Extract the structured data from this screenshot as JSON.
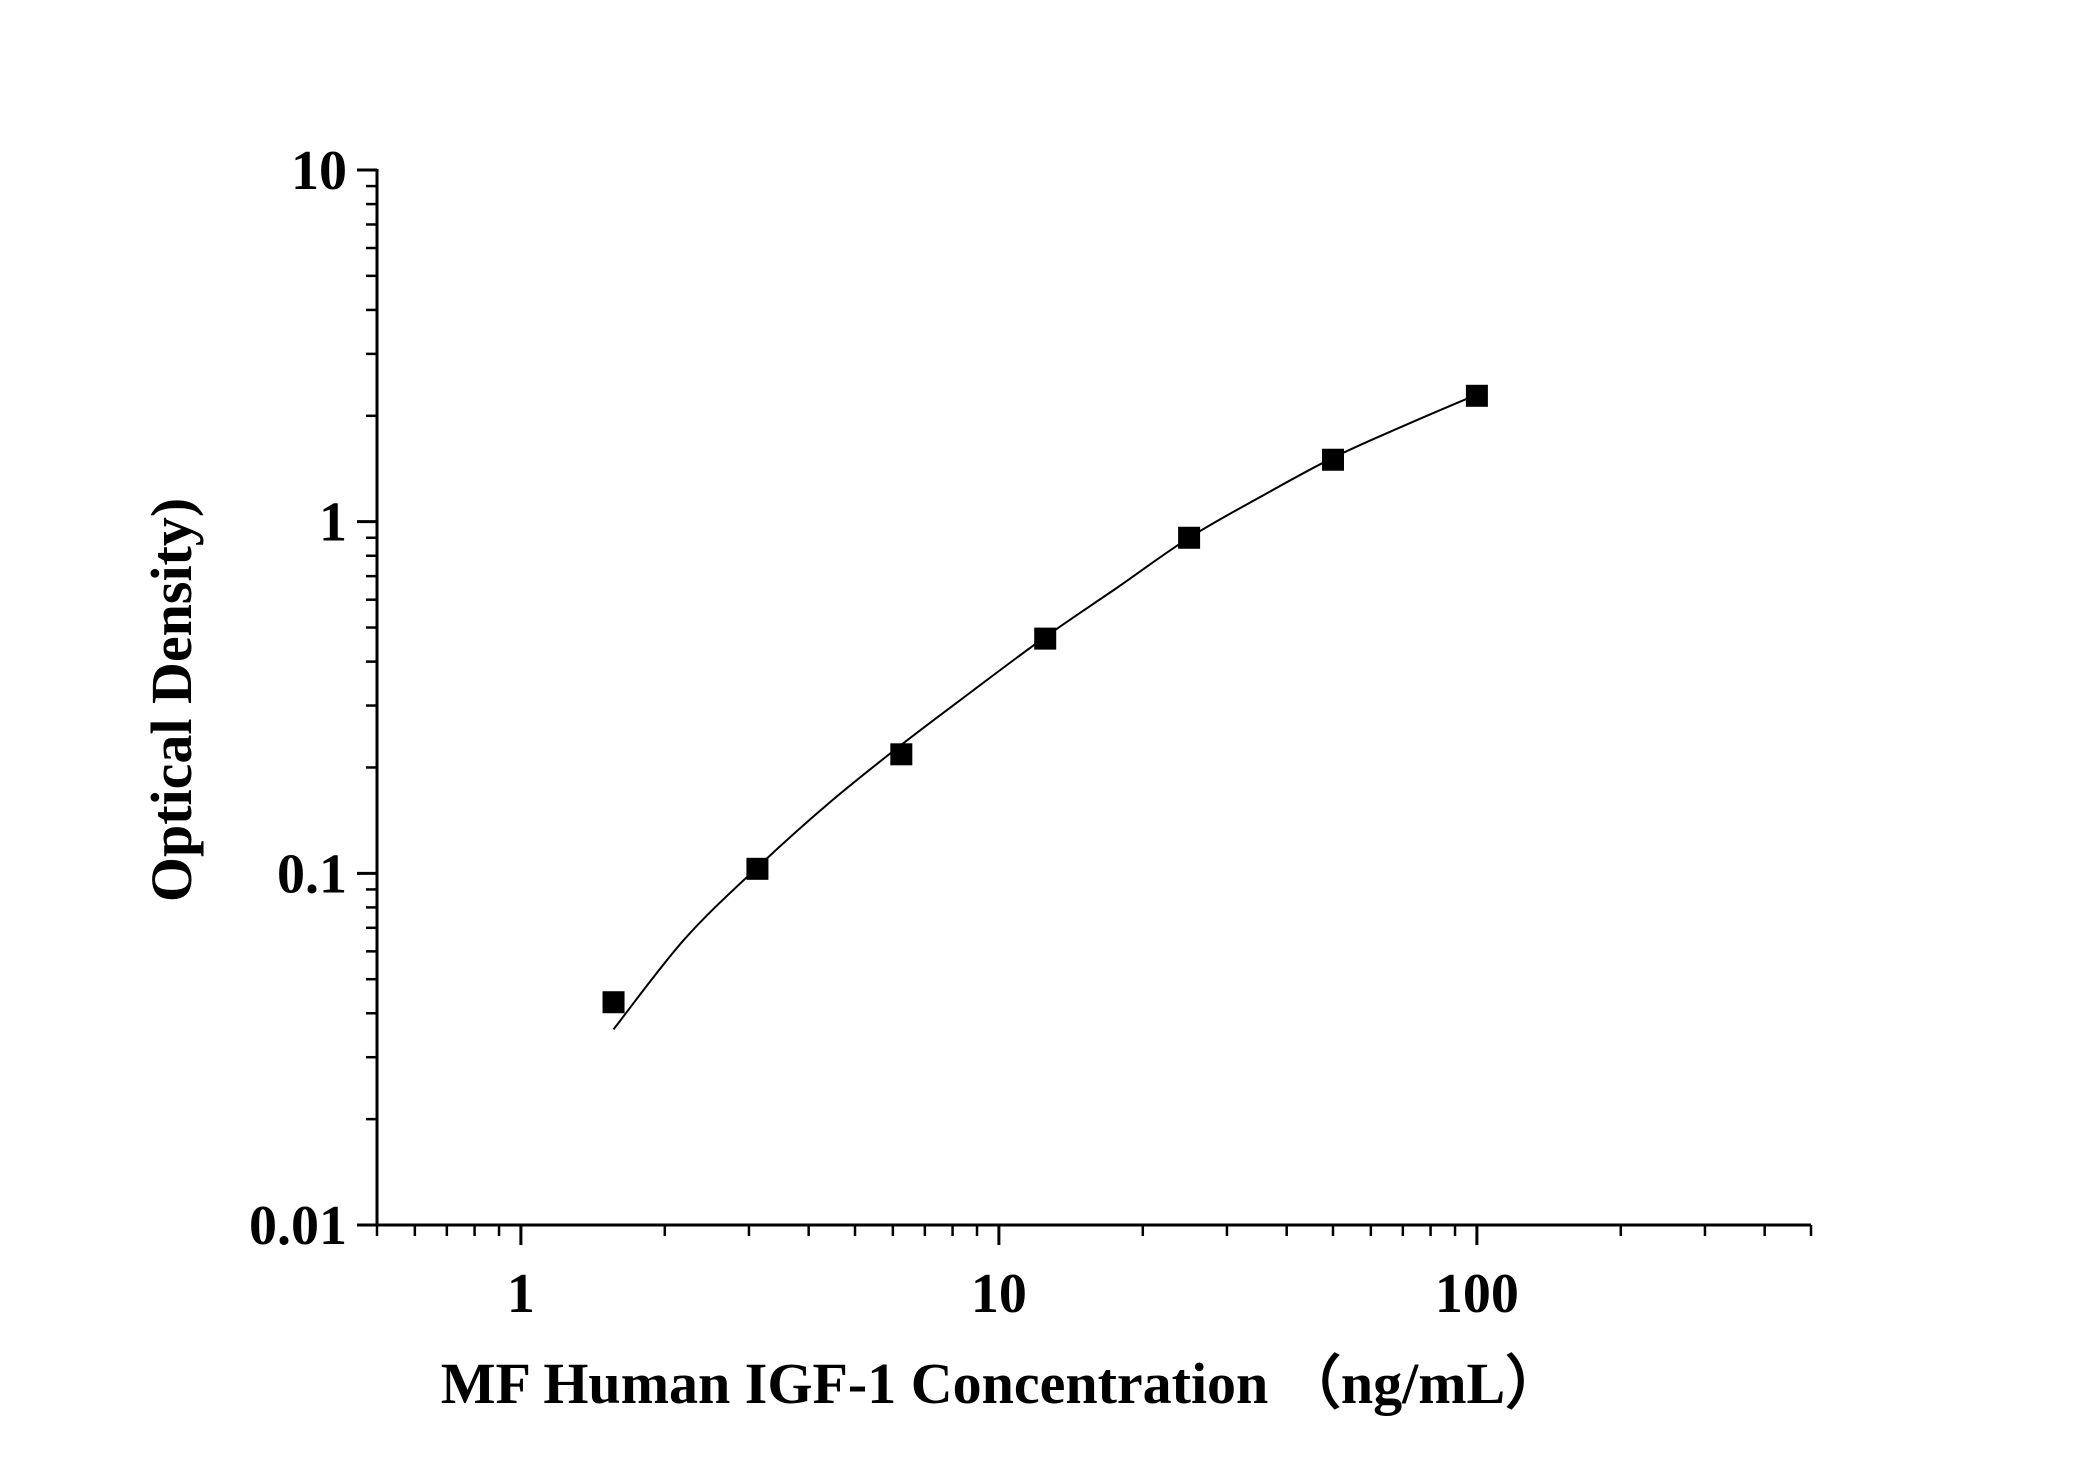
{
  "chart_data": {
    "type": "scatter",
    "title": "",
    "xlabel": "MF Human IGF-1 Concentration （ng/mL）",
    "ylabel": "Optical Density)",
    "x_scale": "log",
    "y_scale": "log",
    "xlim": [
      0.5,
      500
    ],
    "ylim": [
      0.01,
      10
    ],
    "x_ticks": [
      {
        "value": 1,
        "label": "1"
      },
      {
        "value": 10,
        "label": "10"
      },
      {
        "value": 100,
        "label": "100"
      }
    ],
    "y_ticks": [
      {
        "value": 0.01,
        "label": "0.01"
      },
      {
        "value": 0.1,
        "label": "0.1"
      },
      {
        "value": 1,
        "label": "1"
      },
      {
        "value": 10,
        "label": "10"
      }
    ],
    "grid": false,
    "legend": "none",
    "series": [
      {
        "kind": "points",
        "marker": "square",
        "color": "#000000",
        "points": [
          {
            "x": 1.5625,
            "y": 0.043
          },
          {
            "x": 3.125,
            "y": 0.103
          },
          {
            "x": 6.25,
            "y": 0.218
          },
          {
            "x": 12.5,
            "y": 0.465
          },
          {
            "x": 25,
            "y": 0.9
          },
          {
            "x": 50,
            "y": 1.5
          },
          {
            "x": 100,
            "y": 2.28
          }
        ]
      },
      {
        "kind": "fit",
        "color": "#000000",
        "points": [
          {
            "x": 1.5625,
            "y": 0.036
          },
          {
            "x": 2.2,
            "y": 0.065
          },
          {
            "x": 3.125,
            "y": 0.104
          },
          {
            "x": 4.4,
            "y": 0.158
          },
          {
            "x": 6.25,
            "y": 0.232
          },
          {
            "x": 8.8,
            "y": 0.33
          },
          {
            "x": 12.5,
            "y": 0.47
          },
          {
            "x": 17.7,
            "y": 0.65
          },
          {
            "x": 25,
            "y": 0.9
          },
          {
            "x": 35.4,
            "y": 1.18
          },
          {
            "x": 50,
            "y": 1.52
          },
          {
            "x": 70.7,
            "y": 1.88
          },
          {
            "x": 100,
            "y": 2.3
          }
        ]
      }
    ]
  }
}
